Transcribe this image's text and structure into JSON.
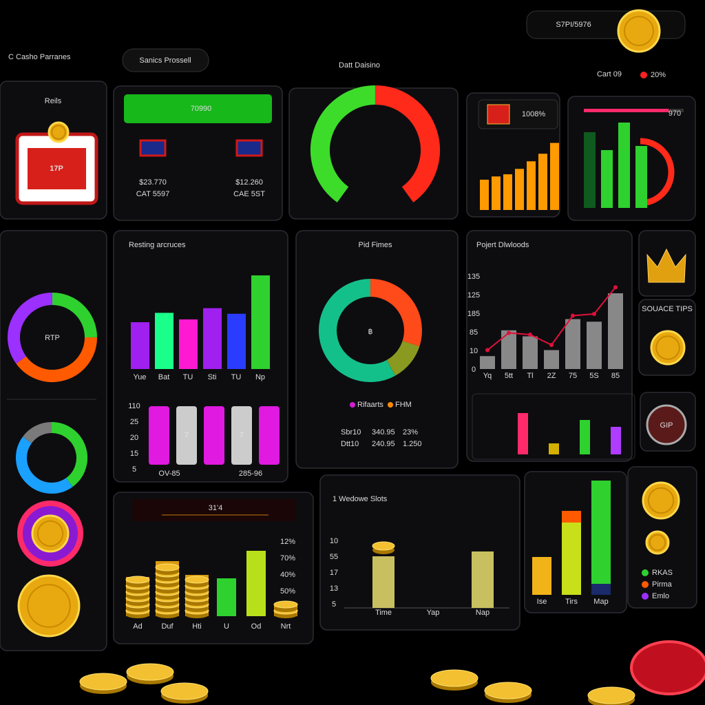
{
  "header": {
    "brand": "C Casho Parranes",
    "search": "Sanics Prossell",
    "title": "Datt Daisino",
    "balance": "S7PI/5976",
    "cart": "Cart 09",
    "rate": "20%"
  },
  "reels": {
    "title": "Reils",
    "logo": "17P"
  },
  "jackpot": {
    "button": "70990",
    "items": [
      {
        "amount": "$23.770",
        "code": "CAT 5597"
      },
      {
        "amount": "$12.260",
        "code": "CAE 5ST"
      }
    ]
  },
  "gauge": {
    "type": "donut",
    "segments": [
      {
        "value": 50,
        "color": "#3ddc2a"
      },
      {
        "value": 50,
        "color": "#ff2a1a"
      }
    ]
  },
  "growth": {
    "type": "bar",
    "label": "1008%",
    "values": [
      28,
      31,
      33,
      38,
      45,
      52,
      62
    ],
    "color": "#ff9a00",
    "ylim": [
      0,
      70
    ]
  },
  "mixed": {
    "type": "bar",
    "label": "970",
    "progress": 85,
    "values": [
      55,
      42,
      62,
      45
    ],
    "colors": [
      "#0f5a1e",
      "#2fd12f",
      "#2fd12f",
      "#2fd12f"
    ],
    "ylim": [
      0,
      70
    ]
  },
  "rtp": {
    "type": "donut",
    "label": "RTP",
    "segments": [
      {
        "value": 25,
        "color": "#2fd12f"
      },
      {
        "value": 40,
        "color": "#ff5a00"
      },
      {
        "value": 35,
        "color": "#9b30ff"
      }
    ]
  },
  "ring": {
    "type": "donut",
    "segments": [
      {
        "value": 40,
        "color": "#2fd12f"
      },
      {
        "value": 45,
        "color": "#1aa0ff"
      },
      {
        "value": 15,
        "color": "#7a7a7a"
      }
    ]
  },
  "resting": {
    "type": "bar",
    "title": "Resting arcruces",
    "categories": [
      "Yue",
      "Bat",
      "TU",
      "Sti",
      "TU",
      "Np"
    ],
    "values": [
      50,
      60,
      53,
      65,
      59,
      100
    ],
    "colors": [
      "#a020f0",
      "#1aff8a",
      "#ff1ad2",
      "#a020f0",
      "#2a3cff",
      "#2fd12f"
    ],
    "ylim": [
      0,
      100
    ]
  },
  "reel_strip": {
    "tick_labels": [
      "110",
      "25",
      "20",
      "15",
      "5"
    ],
    "labels": [
      "OV-85",
      "285-96"
    ],
    "symbol": "7"
  },
  "pid": {
    "type": "donut",
    "title": "Pid Fimes",
    "center": "฿",
    "segments": [
      {
        "value": 30,
        "color": "#ff4a1a"
      },
      {
        "value": 12,
        "color": "#8a9a20"
      },
      {
        "value": 58,
        "color": "#14c08a"
      }
    ],
    "legend": [
      {
        "name": "Rifaarts",
        "color": "#d21fd2"
      },
      {
        "name": "FHM",
        "color": "#ff8a00"
      }
    ],
    "rows": [
      [
        "Sbr10",
        "340.95",
        "23%"
      ],
      [
        "Dtt10",
        "240.95",
        "1.250"
      ]
    ]
  },
  "project": {
    "type": "bar",
    "title": "Pojert Dlwloods",
    "tick_labels": [
      "135",
      "125",
      "185",
      "85",
      "10",
      "0"
    ],
    "categories": [
      "Yq",
      "5tt",
      "Tl",
      "2Z",
      "75",
      "5S",
      "85"
    ],
    "values": [
      15,
      45,
      38,
      22,
      58,
      55,
      88
    ],
    "line": [
      22,
      42,
      40,
      28,
      62,
      64,
      95
    ],
    "ylim": [
      0,
      100
    ],
    "mini": {
      "values": [
        30,
        8,
        25,
        20
      ],
      "colors": [
        "#ff2a6a",
        "#d4b000",
        "#2fd12f",
        "#b03cff"
      ],
      "ylim": [
        0,
        40
      ]
    }
  },
  "side": {
    "source_tips": "SOUACE TIPS",
    "gip": "GIP"
  },
  "coins": {
    "type": "bar",
    "title": "31'4",
    "categories": [
      "Ad",
      "Duf",
      "Hti",
      "U",
      "Od",
      "Nrt"
    ],
    "values": [
      57,
      80,
      60,
      55,
      95,
      18
    ],
    "colors": [
      "#f2b21a",
      "#f2b21a",
      "#f2b21a",
      "#2fd12f",
      "#b8e01a",
      "#f2b21a"
    ],
    "ylim": [
      0,
      100
    ],
    "percent_labels": [
      {
        "text": "12%",
        "color": "#ffffff"
      },
      {
        "text": "70%",
        "color": "#ffffff"
      },
      {
        "text": "40%",
        "color": "#2fd12f"
      },
      {
        "text": "50%",
        "color": "#ffffff"
      }
    ]
  },
  "slots": {
    "type": "bar",
    "title": "1 Wedowe Slots",
    "tick_labels": [
      "10",
      "55",
      "17",
      "13",
      "5"
    ],
    "categories": [
      "Time",
      "Yap",
      "Nap"
    ],
    "values": [
      75,
      null,
      82
    ],
    "color": "#c8c060",
    "ylim": [
      0,
      100
    ]
  },
  "stacks": {
    "type": "stacked-bar",
    "categories": [
      "Ise",
      "Tirs",
      "Map"
    ],
    "bars": [
      [
        {
          "value": 55,
          "color": "#f2b21a"
        }
      ],
      [
        {
          "value": 105,
          "color": "#c8e01a"
        },
        {
          "value": 17,
          "color": "#ff5a00"
        }
      ],
      [
        {
          "value": 16,
          "color": "#1a2a6a"
        },
        {
          "value": 150,
          "color": "#2fd12f"
        }
      ]
    ],
    "ylim": [
      0,
      170
    ]
  },
  "legend": [
    {
      "name": "RKAS",
      "color": "#2fd12f"
    },
    {
      "name": "Pirma",
      "color": "#ff5a00"
    },
    {
      "name": "Emlo",
      "color": "#9b30ff"
    }
  ]
}
